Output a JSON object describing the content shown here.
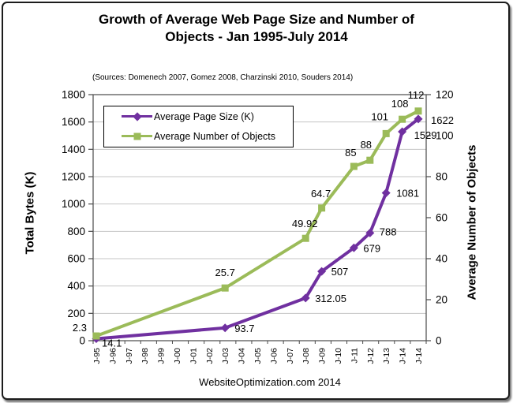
{
  "chart_data": {
    "type": "line",
    "title": "Growth of Average Web Page Size and Number of Objects - Jan 1995-July 2014",
    "title_lines": [
      "Growth of Average Web Page Size and Number of",
      "Objects - Jan 1995-July 2014"
    ],
    "subtitle": "(Sources: Domenech 2007, Gomez 2008, Charzinski 2010, Souders 2014)",
    "footer": "WebsiteOptimization.com 2014",
    "categories": [
      "J-95",
      "J-96",
      "J-97",
      "J-98",
      "J-99",
      "J-00",
      "J-01",
      "J-02",
      "J-03",
      "J-04",
      "J-05",
      "J-06",
      "J-07",
      "J-08",
      "J-09",
      "J-10",
      "J-11",
      "J-12",
      "J-13",
      "J-14",
      "J-14"
    ],
    "x_indices": [
      0,
      8,
      13,
      14,
      16,
      17,
      18,
      19,
      20
    ],
    "series": [
      {
        "name": "Average Page Size (K)",
        "axis": "left",
        "marker": "diamond",
        "color": "#7030A0",
        "values": [
          14.1,
          93.7,
          312.05,
          507,
          679,
          788,
          1081,
          1529,
          1622
        ]
      },
      {
        "name": "Average Number of Objects",
        "axis": "right",
        "marker": "square",
        "color": "#9BBB59",
        "values": [
          2.3,
          25.7,
          49.92,
          64.7,
          85,
          88,
          101,
          108,
          112
        ]
      }
    ],
    "left_axis": {
      "title": "Total Bytes (K)",
      "min": 0,
      "max": 1800,
      "step": 200
    },
    "right_axis": {
      "title": "Average Number of Objects",
      "min": 0,
      "max": 120,
      "step": 20
    },
    "grid": "horizontal",
    "legend_position": "inside-top-left"
  }
}
